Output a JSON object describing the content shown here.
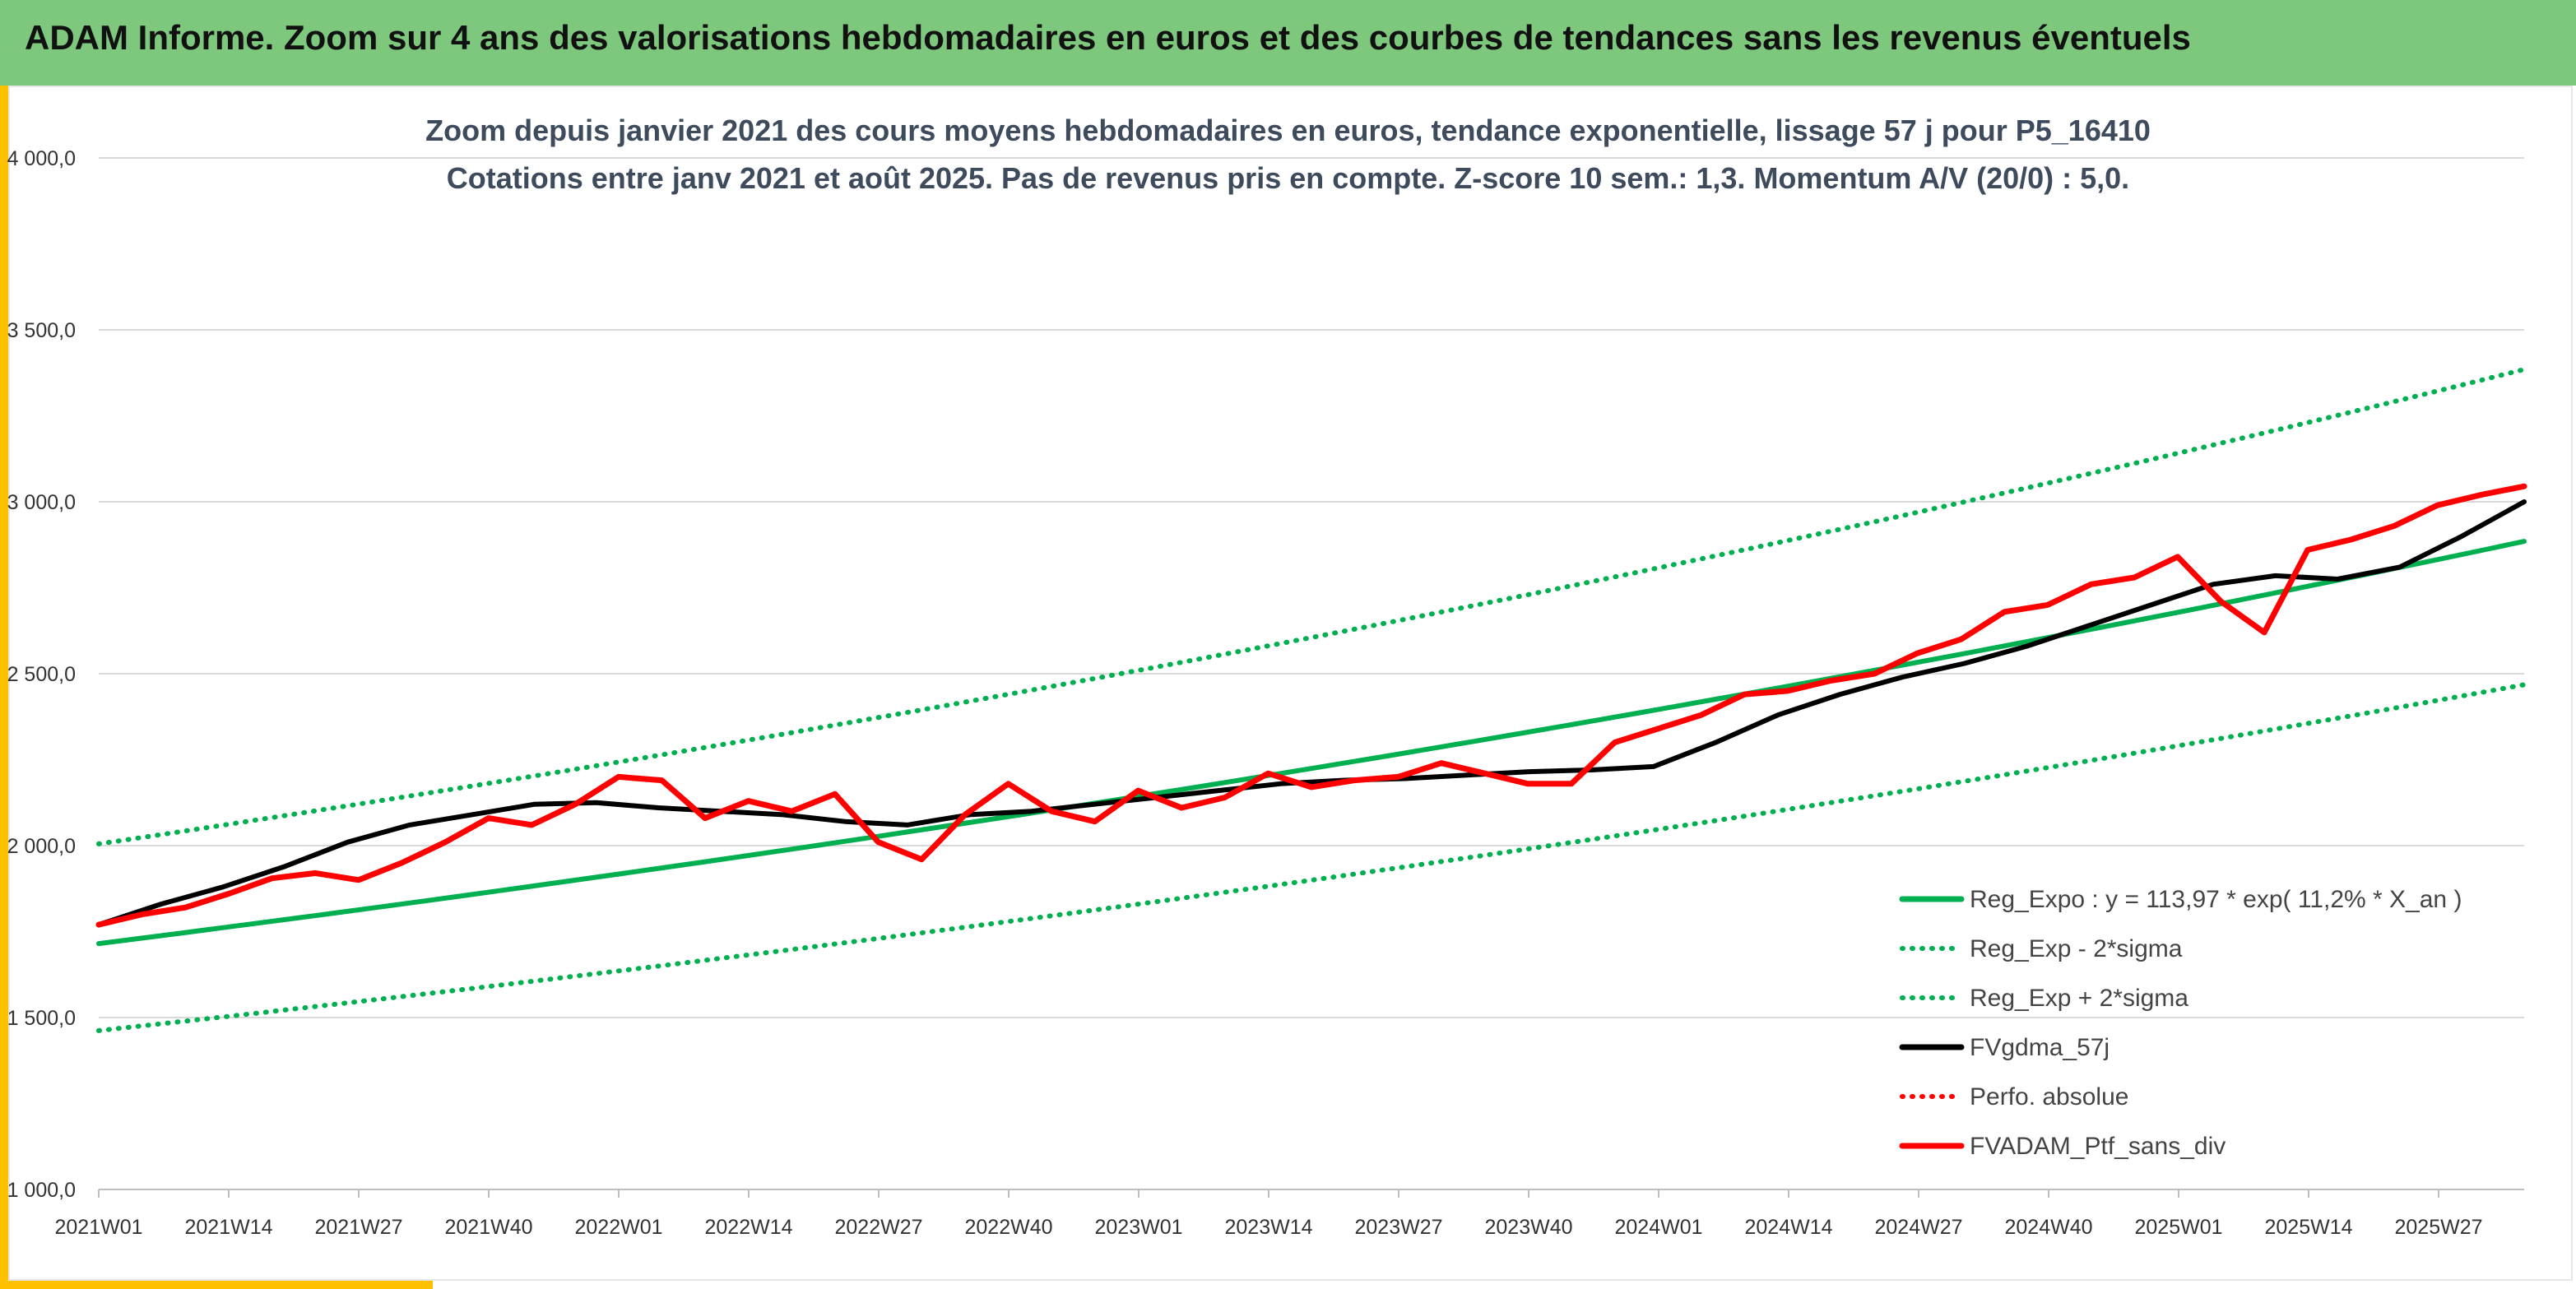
{
  "header": {
    "title": "ADAM Informe. Zoom sur 4 ans des valorisations hebdomadaires en euros et des courbes de tendances sans les revenus éventuels"
  },
  "colors": {
    "banner": "#7ec87e",
    "accent": "#ffc000",
    "reg_expo": "#00b050",
    "fvgdma": "#000000",
    "ptf": "#ff0000"
  },
  "chart_data": {
    "type": "line",
    "title": "Zoom depuis janvier 2021 des cours moyens hebdomadaires en euros, tendance exponentielle, lissage 57 j pour P5_16410",
    "subtitle": "Cotations entre janv 2021 et août 2025. Pas de revenus pris en compte. Z-score 10 sem.: 1,3. Momentum A/V (20/0) : 5,0.",
    "x_ticks": [
      "2021W01",
      "2021W14",
      "2021W27",
      "2021W40",
      "2022W01",
      "2022W14",
      "2022W27",
      "2022W40",
      "2023W01",
      "2023W14",
      "2023W27",
      "2023W40",
      "2024W01",
      "2024W14",
      "2024W27",
      "2024W40",
      "2025W01",
      "2025W14",
      "2025W27"
    ],
    "y_ticks": [
      "1 000,0",
      "1 500,0",
      "2 000,0",
      "2 500,0",
      "3 000,0",
      "3 500,0",
      "4 000,0"
    ],
    "ylim": [
      1000,
      4000
    ],
    "grid": true,
    "legend_position": "bottom-right",
    "series": [
      {
        "name": "Reg_Expo : y = 113,97 * exp( 11,2% *  X_an )",
        "style": "solid",
        "color": "#00b050",
        "values": [
          1715,
          2885
        ]
      },
      {
        "name": "Reg_Exp - 2*sigma",
        "style": "dotted",
        "color": "#00b050",
        "values": [
          1462,
          2468
        ]
      },
      {
        "name": "Reg_Exp + 2*sigma",
        "style": "dotted",
        "color": "#00b050",
        "values": [
          2005,
          3385
        ]
      },
      {
        "name": "FVgdma_57j",
        "style": "solid",
        "color": "#000000",
        "values": [
          1770,
          1830,
          1880,
          1940,
          2010,
          2060,
          2090,
          2120,
          2125,
          2110,
          2100,
          2090,
          2070,
          2060,
          2090,
          2100,
          2120,
          2140,
          2160,
          2180,
          2190,
          2195,
          2205,
          2215,
          2220,
          2230,
          2300,
          2380,
          2440,
          2490,
          2530,
          2580,
          2640,
          2700,
          2760,
          2785,
          2775,
          2810,
          2900,
          3000
        ]
      },
      {
        "name": "Perfo. absolue",
        "style": "dotted",
        "color": "#ff0000",
        "values": []
      },
      {
        "name": "FVADAM_Ptf_sans_div",
        "style": "solid",
        "color": "#ff0000",
        "values": [
          1770,
          1800,
          1820,
          1860,
          1905,
          1920,
          1900,
          1950,
          2010,
          2080,
          2060,
          2120,
          2200,
          2190,
          2080,
          2130,
          2100,
          2150,
          2010,
          1960,
          2090,
          2180,
          2100,
          2070,
          2160,
          2110,
          2140,
          2210,
          2170,
          2190,
          2200,
          2240,
          2210,
          2180,
          2180,
          2300,
          2340,
          2380,
          2440,
          2450,
          2480,
          2500,
          2560,
          2600,
          2680,
          2700,
          2760,
          2780,
          2840,
          2710,
          2620,
          2860,
          2890,
          2930,
          2990,
          3020,
          3045
        ]
      }
    ]
  }
}
